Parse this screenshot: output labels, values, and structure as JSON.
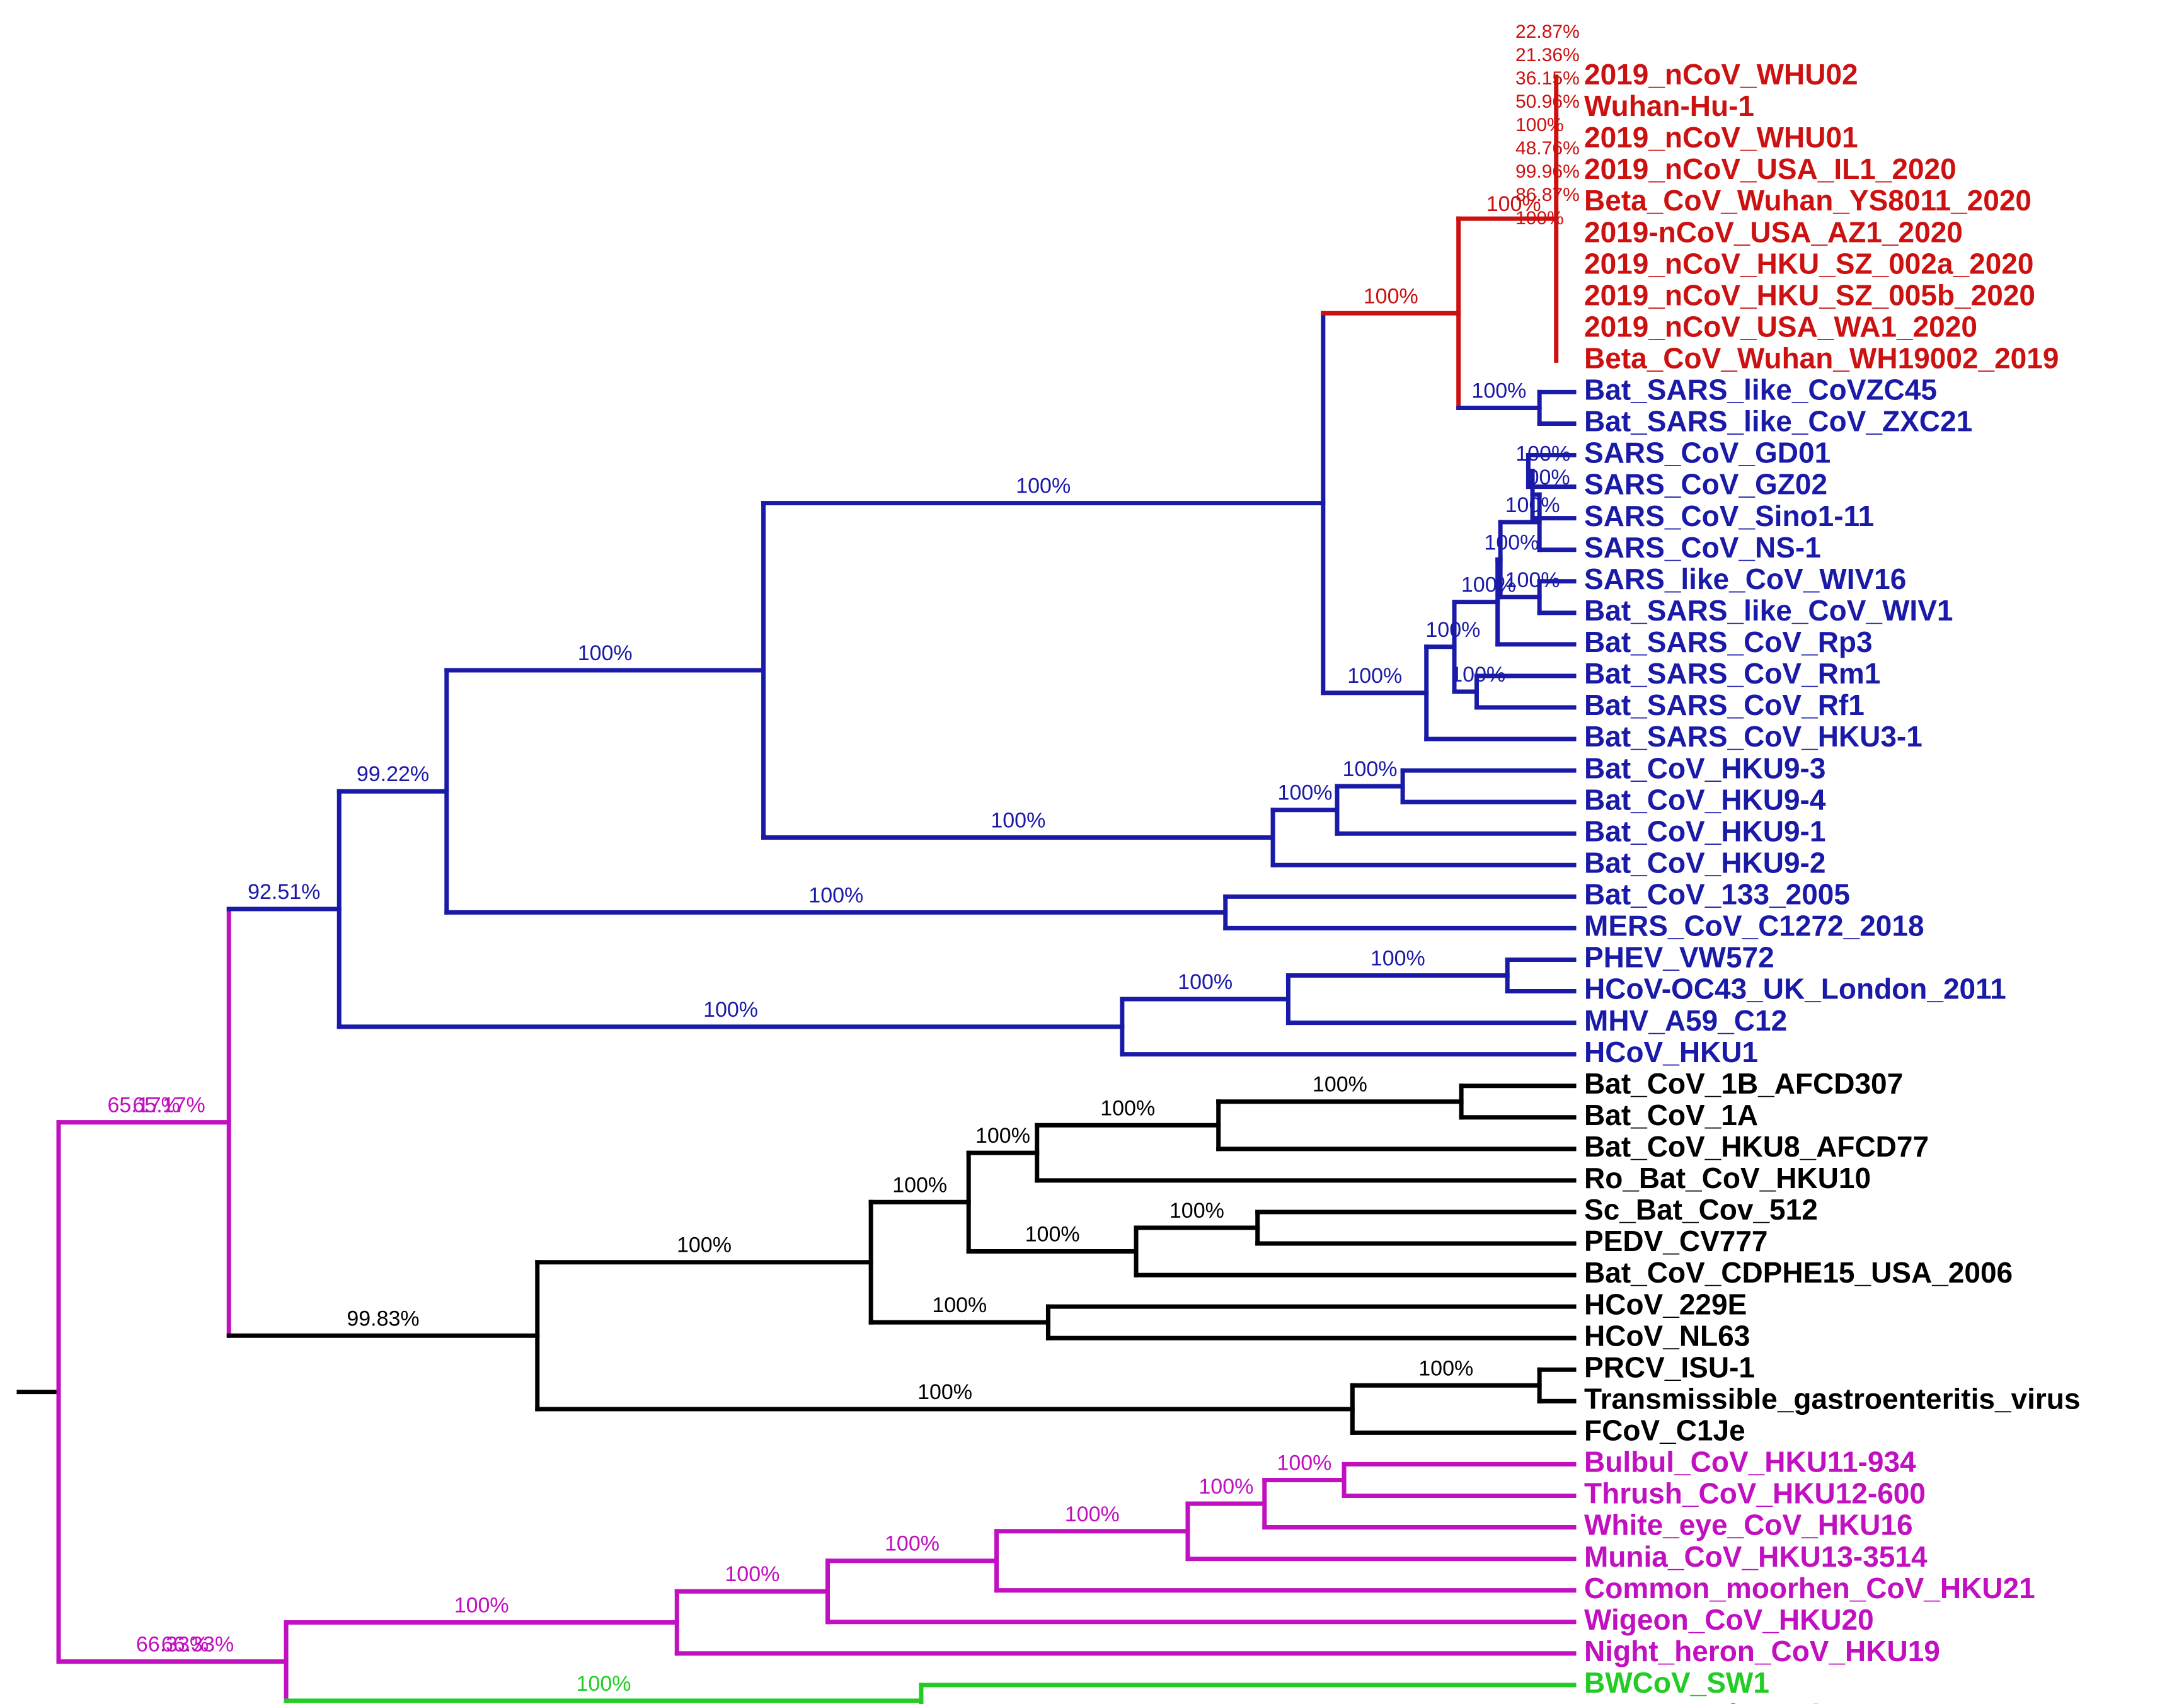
{
  "colors": {
    "red": "#cc1111",
    "blue": "#1a1aa8",
    "black": "#000000",
    "magenta": "#c010c0",
    "green": "#22cc22"
  },
  "taxa": [
    {
      "label": "2019_nCoV_WHU02",
      "color": "red"
    },
    {
      "label": "Wuhan-Hu-1",
      "color": "red"
    },
    {
      "label": "2019_nCoV_WHU01",
      "color": "red"
    },
    {
      "label": "2019_nCoV_USA_IL1_2020",
      "color": "red"
    },
    {
      "label": "Beta_CoV_Wuhan_YS8011_2020",
      "color": "red"
    },
    {
      "label": "2019-nCoV_USA_AZ1_2020",
      "color": "red"
    },
    {
      "label": "2019_nCoV_HKU_SZ_002a_2020",
      "color": "red"
    },
    {
      "label": "2019_nCoV_HKU_SZ_005b_2020",
      "color": "red"
    },
    {
      "label": "2019_nCoV_USA_WA1_2020",
      "color": "red"
    },
    {
      "label": "Beta_CoV_Wuhan_WH19002_2019",
      "color": "red"
    },
    {
      "label": "Bat_SARS_like_CoVZC45",
      "color": "blue"
    },
    {
      "label": "Bat_SARS_like_CoV_ZXC21",
      "color": "blue"
    },
    {
      "label": "SARS_CoV_GD01",
      "color": "blue"
    },
    {
      "label": "SARS_CoV_GZ02",
      "color": "blue"
    },
    {
      "label": "SARS_CoV_Sino1-11",
      "color": "blue"
    },
    {
      "label": "SARS_CoV_NS-1",
      "color": "blue"
    },
    {
      "label": "SARS_like_CoV_WIV16",
      "color": "blue"
    },
    {
      "label": "Bat_SARS_like_CoV_WIV1",
      "color": "blue"
    },
    {
      "label": "Bat_SARS_CoV_Rp3",
      "color": "blue"
    },
    {
      "label": "Bat_SARS_CoV_Rm1",
      "color": "blue"
    },
    {
      "label": "Bat_SARS_CoV_Rf1",
      "color": "blue"
    },
    {
      "label": "Bat_SARS_CoV_HKU3-1",
      "color": "blue"
    },
    {
      "label": "Bat_CoV_HKU9-3",
      "color": "blue"
    },
    {
      "label": "Bat_CoV_HKU9-4",
      "color": "blue"
    },
    {
      "label": "Bat_CoV_HKU9-1",
      "color": "blue"
    },
    {
      "label": "Bat_CoV_HKU9-2",
      "color": "blue"
    },
    {
      "label": "Bat_CoV_133_2005",
      "color": "blue"
    },
    {
      "label": "MERS_CoV_C1272_2018",
      "color": "blue"
    },
    {
      "label": "PHEV_VW572",
      "color": "blue"
    },
    {
      "label": "HCoV-OC43_UK_London_2011",
      "color": "blue"
    },
    {
      "label": "MHV_A59_C12",
      "color": "blue"
    },
    {
      "label": "HCoV_HKU1",
      "color": "blue"
    },
    {
      "label": "Bat_CoV_1B_AFCD307",
      "color": "black"
    },
    {
      "label": "Bat_CoV_1A",
      "color": "black"
    },
    {
      "label": "Bat_CoV_HKU8_AFCD77",
      "color": "black"
    },
    {
      "label": "Ro_Bat_CoV_HKU10",
      "color": "black"
    },
    {
      "label": "Sc_Bat_Cov_512",
      "color": "black"
    },
    {
      "label": "PEDV_CV777",
      "color": "black"
    },
    {
      "label": "Bat_CoV_CDPHE15_USA_2006",
      "color": "black"
    },
    {
      "label": "HCoV_229E",
      "color": "black"
    },
    {
      "label": "HCoV_NL63",
      "color": "black"
    },
    {
      "label": "PRCV_ISU-1",
      "color": "black"
    },
    {
      "label": "Transmissible_gastroenteritis_virus",
      "color": "black"
    },
    {
      "label": "FCoV_C1Je",
      "color": "black"
    },
    {
      "label": "Bulbul_CoV_HKU11-934",
      "color": "magenta"
    },
    {
      "label": "Thrush_CoV_HKU12-600",
      "color": "magenta"
    },
    {
      "label": "White_eye_CoV_HKU16",
      "color": "magenta"
    },
    {
      "label": "Munia_CoV_HKU13-3514",
      "color": "magenta"
    },
    {
      "label": "Common_moorhen_CoV_HKU21",
      "color": "magenta"
    },
    {
      "label": "Wigeon_CoV_HKU20",
      "color": "magenta"
    },
    {
      "label": "Night_heron_CoV_HKU19",
      "color": "magenta"
    },
    {
      "label": "BWCoV_SW1",
      "color": "green"
    },
    {
      "label": "IBV_Beaudette_CK",
      "color": "green"
    }
  ],
  "support_labels": [
    {
      "id": "root_upper",
      "text": "65.17%"
    },
    {
      "id": "root_lower",
      "text": "66.33%"
    },
    {
      "id": "beta_all",
      "text": "92.51%"
    },
    {
      "id": "beta_bcd",
      "text": "99.22%"
    },
    {
      "id": "beta_bc",
      "text": "100%"
    },
    {
      "id": "beta_b",
      "text": "100%"
    },
    {
      "id": "sarbeco_2019",
      "text": "100%"
    },
    {
      "id": "ncov_clade",
      "text": "100%"
    },
    {
      "id": "zc45_pair",
      "text": "100%"
    },
    {
      "id": "sars_clade",
      "text": "100%"
    },
    {
      "id": "sars_hku3",
      "text": "100%"
    },
    {
      "id": "sars_rm1rf1",
      "text": "100%"
    },
    {
      "id": "sars_core",
      "text": "100%"
    },
    {
      "id": "sars_core2",
      "text": "100%"
    },
    {
      "id": "sars_wiv",
      "text": "100%"
    },
    {
      "id": "sars_human",
      "text": "100%"
    },
    {
      "id": "sars_gz",
      "text": "100%"
    },
    {
      "id": "sars_sino",
      "text": "00%"
    },
    {
      "id": "hku9_clade",
      "text": "100%"
    },
    {
      "id": "hku9_inner",
      "text": "100%"
    },
    {
      "id": "hku9_top",
      "text": "100%"
    },
    {
      "id": "merbeco",
      "text": "100%"
    },
    {
      "id": "embeco",
      "text": "100%"
    },
    {
      "id": "embeco_inner",
      "text": "100%"
    },
    {
      "id": "phev_oc43",
      "text": "100%"
    },
    {
      "id": "alpha_all",
      "text": "99.83%"
    },
    {
      "id": "alpha_main",
      "text": "100%"
    },
    {
      "id": "alpha_a",
      "text": "100%"
    },
    {
      "id": "alpha_b",
      "text": "100%"
    },
    {
      "id": "bat_hku8",
      "text": "100%"
    },
    {
      "id": "bat_1a1b",
      "text": "100%"
    },
    {
      "id": "pedv_group",
      "text": "100%"
    },
    {
      "id": "sc_pedv",
      "text": "100%"
    },
    {
      "id": "hcov229",
      "text": "100%"
    },
    {
      "id": "tgev_group",
      "text": "100%"
    },
    {
      "id": "tgev_pair",
      "text": "100%"
    },
    {
      "id": "delta_all",
      "text": "100%"
    },
    {
      "id": "delta_a",
      "text": "100%"
    },
    {
      "id": "delta_b",
      "text": "100%"
    },
    {
      "id": "delta_c",
      "text": "100%"
    },
    {
      "id": "delta_d",
      "text": "100%"
    },
    {
      "id": "delta_e",
      "text": "100%"
    },
    {
      "id": "gamma",
      "text": "100%"
    }
  ],
  "ncov_small_labels": [
    "22.87%",
    "21.36%",
    "36.15%",
    "50.96%",
    "100%",
    "48.76%",
    "99.96%",
    "86.87%",
    "100%"
  ]
}
